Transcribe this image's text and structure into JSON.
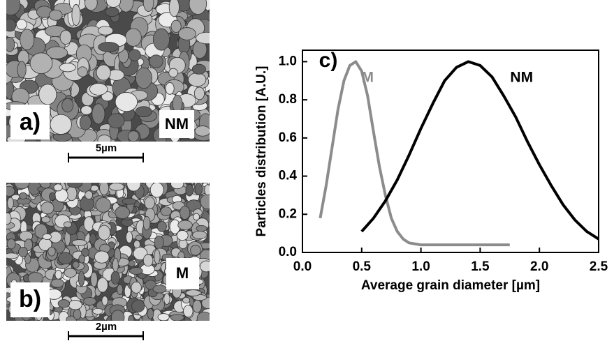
{
  "images": [
    {
      "panel_label": "a)",
      "sample_label": "NM",
      "scale_bar": "5µm"
    },
    {
      "panel_label": "b)",
      "sample_label": "M",
      "scale_bar": "2µm"
    }
  ],
  "chart_data": {
    "type": "line",
    "panel_label": "c)",
    "x_label": "Average grain diameter [µm]",
    "y_label": "Particles distribution [A.U.]",
    "xlim": [
      0,
      2.5
    ],
    "ylim": [
      0,
      1.06
    ],
    "xticks": [
      {
        "value": 0,
        "label": "0.0"
      },
      {
        "value": 0.5,
        "label": "0.5"
      },
      {
        "value": 1,
        "label": "1.0"
      },
      {
        "value": 1.5,
        "label": "1.5"
      },
      {
        "value": 2,
        "label": "2.0"
      },
      {
        "value": 2.5,
        "label": "2.5"
      }
    ],
    "yticks": [
      {
        "value": 0,
        "label": "0.0"
      },
      {
        "value": 0.2,
        "label": "0.2"
      },
      {
        "value": 0.4,
        "label": "0.4"
      },
      {
        "value": 0.6,
        "label": "0.6"
      },
      {
        "value": 0.8,
        "label": "0.8"
      },
      {
        "value": 1,
        "label": "1.0"
      }
    ],
    "series": [
      {
        "name": "M",
        "color": "#8c8c8c",
        "x": [
          0.15,
          0.2,
          0.25,
          0.3,
          0.35,
          0.4,
          0.45,
          0.5,
          0.55,
          0.6,
          0.65,
          0.7,
          0.75,
          0.8,
          0.85,
          0.9,
          1.0,
          1.25,
          1.5,
          1.75
        ],
        "values": [
          0.18,
          0.35,
          0.55,
          0.75,
          0.9,
          0.98,
          1.0,
          0.95,
          0.82,
          0.63,
          0.45,
          0.3,
          0.18,
          0.11,
          0.07,
          0.05,
          0.04,
          0.04,
          0.04,
          0.04
        ]
      },
      {
        "name": "NM",
        "color": "#000000",
        "x": [
          0.5,
          0.6,
          0.7,
          0.8,
          0.9,
          1.0,
          1.1,
          1.2,
          1.3,
          1.4,
          1.5,
          1.6,
          1.7,
          1.8,
          1.9,
          2.0,
          2.1,
          2.2,
          2.3,
          2.4,
          2.5
        ],
        "values": [
          0.11,
          0.18,
          0.27,
          0.38,
          0.51,
          0.65,
          0.78,
          0.9,
          0.97,
          1.0,
          0.98,
          0.92,
          0.82,
          0.71,
          0.58,
          0.46,
          0.35,
          0.25,
          0.17,
          0.11,
          0.07
        ]
      }
    ]
  }
}
